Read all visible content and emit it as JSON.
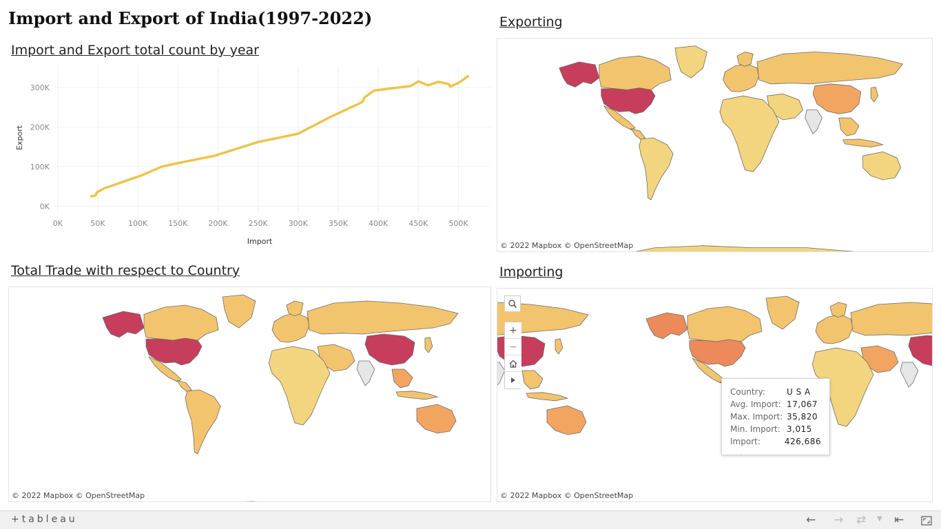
{
  "dashboard": {
    "title": "Import and Export of India(1997-2022)"
  },
  "line_chart": {
    "title": "Import and Export total count by year",
    "color": "#EEC34A"
  },
  "chart_data": {
    "type": "line",
    "xlabel": "Import",
    "ylabel": "Export",
    "x_ticks": [
      "0K",
      "50K",
      "100K",
      "150K",
      "200K",
      "250K",
      "300K",
      "350K",
      "400K",
      "450K",
      "500K"
    ],
    "y_ticks": [
      "0K",
      "100K",
      "200K",
      "300K"
    ],
    "xlim": [
      -5000,
      540000
    ],
    "ylim": [
      -15000,
      350000
    ],
    "grid": true,
    "series": [
      {
        "points": [
          [
            42000,
            25000
          ],
          [
            47000,
            27000
          ],
          [
            49000,
            35000
          ],
          [
            58000,
            45000
          ],
          [
            82000,
            62000
          ],
          [
            105000,
            78000
          ],
          [
            130000,
            100000
          ],
          [
            160000,
            113000
          ],
          [
            195000,
            127000
          ],
          [
            250000,
            162000
          ],
          [
            300000,
            183000
          ],
          [
            340000,
            225000
          ],
          [
            375000,
            258000
          ],
          [
            380000,
            263000
          ],
          [
            383000,
            275000
          ],
          [
            395000,
            292000
          ],
          [
            440000,
            303000
          ],
          [
            450000,
            315000
          ],
          [
            462000,
            305000
          ],
          [
            475000,
            314000
          ],
          [
            488000,
            308000
          ],
          [
            490000,
            302000
          ],
          [
            500000,
            311000
          ],
          [
            512000,
            328000
          ]
        ]
      }
    ]
  },
  "map_export": {
    "title": "Exporting",
    "attribution": "© 2022 Mapbox  © OpenStreetMap"
  },
  "map_total": {
    "title": "Total Trade with respect to Country",
    "attribution": "© 2022 Mapbox  © OpenStreetMap"
  },
  "map_import": {
    "title": "Importing",
    "attribution": "© 2022 Mapbox  © OpenStreetMap",
    "controls": {
      "search_icon": "search-icon",
      "zoom_in_icon": "plus-icon",
      "zoom_out_icon": "minus-icon",
      "home_icon": "home-icon",
      "pan_icon": "play-icon"
    },
    "tooltip": {
      "rows": [
        {
          "label": "Country:",
          "value": "U S A"
        },
        {
          "label": "Avg. Import:",
          "value": "17,067"
        },
        {
          "label": "Max. Import:",
          "value": "35,820"
        },
        {
          "label": "Min. Import:",
          "value": "3,015"
        },
        {
          "label": "Import:",
          "value": "426,686"
        }
      ]
    }
  },
  "colors": {
    "low": "#F2D57E",
    "mid": "#F3C46E",
    "orange": "#F2A561",
    "high_orange": "#EC8A5C",
    "max": "#C63E5C",
    "no_data": "#E6E6E6",
    "border": "#6b6b6b"
  },
  "footer": {
    "logo": "+tableau",
    "undo_icon": "arrow-left-icon",
    "redo_icon": "arrow-right-icon",
    "revert_icon": "revert-icon",
    "dropdown_icon": "caret-down-icon",
    "reset_icon": "reset-start-icon",
    "fullscreen_icon": "fullscreen-icon"
  }
}
